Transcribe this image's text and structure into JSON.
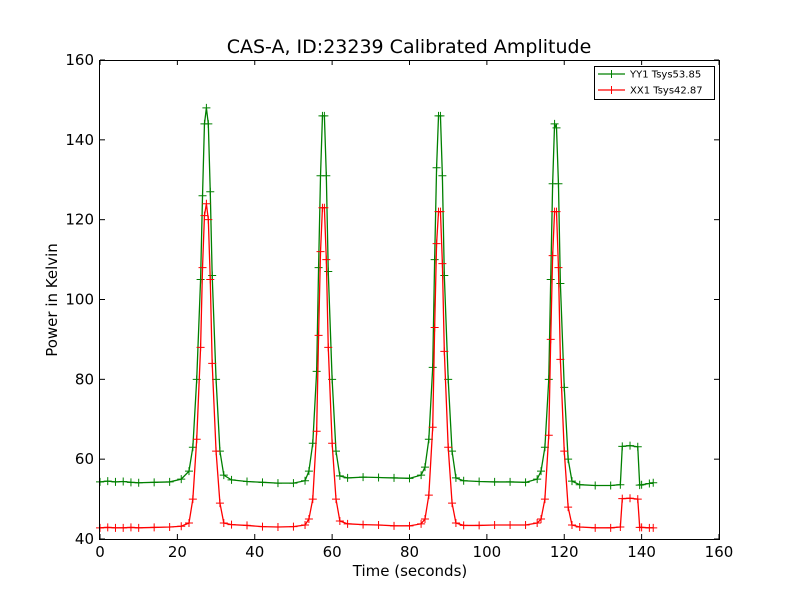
{
  "chart_data": {
    "type": "line",
    "title": "CAS-A, ID:23239 Calibrated Amplitude",
    "xlabel": "Time (seconds)",
    "ylabel": "Power in Kelvin",
    "xlim": [
      0,
      160
    ],
    "ylim": [
      40,
      160
    ],
    "xticks": [
      "0",
      "20",
      "40",
      "60",
      "80",
      "100",
      "120",
      "140",
      "160"
    ],
    "yticks": [
      "40",
      "60",
      "80",
      "100",
      "120",
      "140",
      "160"
    ],
    "grid": false,
    "legend_position": "top-right",
    "marker": "plus",
    "series": [
      {
        "name": "YY1 Tsys53.85",
        "color": "#008000",
        "x": [
          0,
          2,
          4,
          6,
          8,
          10,
          14,
          18,
          21,
          23,
          24,
          25,
          26,
          26.5,
          27,
          27.5,
          28,
          28.5,
          29,
          30,
          31,
          32,
          34,
          38,
          42,
          46,
          50,
          53,
          54,
          55,
          56,
          56.5,
          57,
          57.5,
          58,
          58.5,
          59,
          60,
          61,
          62,
          64,
          68,
          72,
          76,
          80,
          83,
          84,
          85,
          86,
          86.5,
          87,
          87.5,
          88,
          88.5,
          89,
          90,
          91,
          92,
          94,
          98,
          102,
          106,
          110,
          113,
          114,
          115,
          116,
          116.5,
          117,
          117.5,
          118,
          118.5,
          119,
          120,
          121,
          122,
          124,
          128,
          132,
          134.5,
          135,
          137,
          139,
          139.5,
          140,
          142,
          143
        ],
        "y": [
          54.3,
          54.5,
          54.3,
          54.4,
          54.2,
          54.1,
          54.2,
          54.3,
          55,
          57,
          63,
          80,
          105,
          126,
          144,
          148,
          144,
          127,
          106,
          80,
          62,
          56,
          54.8,
          54.4,
          54.2,
          54,
          54,
          54.6,
          57,
          64,
          82,
          108,
          131,
          146,
          146,
          131,
          107,
          80,
          62,
          55.8,
          55.3,
          55.5,
          55.4,
          55.3,
          55.2,
          56,
          58,
          65,
          83,
          110,
          133,
          146,
          146,
          131,
          106,
          80,
          62,
          55.3,
          54.6,
          54.4,
          54.3,
          54.3,
          54.2,
          55,
          57,
          63,
          80,
          105,
          129,
          144,
          143,
          129,
          104,
          78,
          60,
          54.5,
          53.6,
          53.4,
          53.4,
          53.6,
          63.2,
          63.4,
          63.1,
          53.5,
          53.6,
          53.9,
          54.1
        ]
      },
      {
        "name": "XX1 Tsys42.87",
        "color": "#ff0000",
        "x": [
          0,
          2,
          4,
          6,
          8,
          10,
          14,
          18,
          21,
          23,
          24,
          25,
          26,
          26.5,
          27,
          27.5,
          28,
          28.5,
          29,
          30,
          31,
          32,
          34,
          38,
          42,
          46,
          50,
          53,
          54,
          55,
          56,
          56.5,
          57,
          57.5,
          58,
          58.5,
          59,
          60,
          61,
          62,
          64,
          68,
          72,
          76,
          80,
          83,
          84,
          85,
          86,
          86.5,
          87,
          87.5,
          88,
          88.5,
          89,
          90,
          91,
          92,
          94,
          98,
          102,
          106,
          110,
          113,
          114,
          115,
          116,
          116.5,
          117,
          117.5,
          118,
          118.5,
          119,
          120,
          121,
          122,
          124,
          128,
          132,
          134.5,
          135,
          137,
          139,
          139.5,
          140,
          142,
          143
        ],
        "y": [
          42.8,
          42.9,
          42.8,
          42.8,
          42.9,
          42.8,
          42.9,
          43,
          43.2,
          44,
          50,
          65,
          88,
          108,
          121,
          124,
          120,
          105,
          84,
          62,
          49,
          44,
          43.6,
          43.4,
          43.1,
          43,
          43.1,
          43.5,
          45,
          50,
          67,
          91,
          112,
          123,
          123,
          110,
          88,
          64,
          50,
          44.5,
          43.8,
          43.6,
          43.5,
          43.3,
          43.3,
          43.8,
          45,
          51,
          68,
          93,
          114,
          122,
          122,
          109,
          87,
          63,
          49,
          44,
          43.4,
          43.4,
          43.5,
          43.5,
          43.5,
          44,
          45,
          50,
          66,
          90,
          111,
          122,
          122,
          108,
          85,
          62,
          48,
          43.5,
          43,
          42.8,
          42.8,
          43,
          50.1,
          50.2,
          50,
          42.9,
          42.9,
          42.8,
          42.8
        ]
      }
    ]
  }
}
